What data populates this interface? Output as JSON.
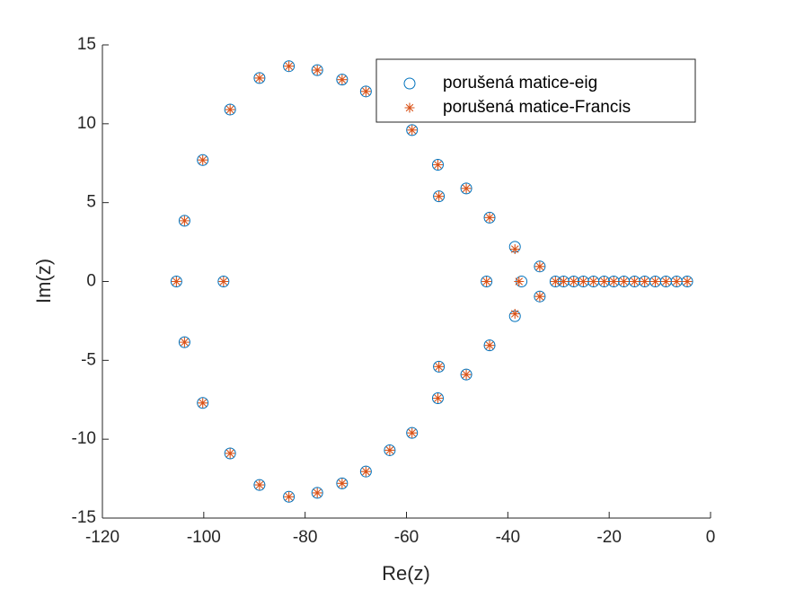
{
  "chart_data": {
    "type": "scatter",
    "xlabel": "Re(z)",
    "ylabel": "Im(z)",
    "xlim": [
      -120,
      0
    ],
    "ylim": [
      -15,
      15
    ],
    "xticks": [
      -120,
      -100,
      -80,
      -60,
      -40,
      -20,
      0
    ],
    "yticks": [
      -15,
      -10,
      -5,
      0,
      5,
      10,
      15
    ],
    "xtick_labels": [
      "-120",
      "-100",
      "-80",
      "-60",
      "-40",
      "-20",
      "0"
    ],
    "ytick_labels": [
      "-15",
      "-10",
      "-5",
      "0",
      "5",
      "10",
      "15"
    ],
    "grid": false,
    "legend_position": "top-right",
    "series": [
      {
        "name": "porušená matice-eig",
        "marker": "circle",
        "color": "#0072BD",
        "points": [
          [
            -105.4,
            0
          ],
          [
            -96.1,
            0
          ],
          [
            -103.8,
            3.85
          ],
          [
            -103.8,
            -3.85
          ],
          [
            -100.2,
            7.7
          ],
          [
            -100.2,
            -7.7
          ],
          [
            -94.8,
            10.9
          ],
          [
            -94.8,
            -10.9
          ],
          [
            -89.0,
            12.9
          ],
          [
            -89.0,
            -12.9
          ],
          [
            -83.2,
            13.65
          ],
          [
            -83.2,
            -13.65
          ],
          [
            -77.6,
            13.4
          ],
          [
            -77.6,
            -13.4
          ],
          [
            -72.7,
            12.8
          ],
          [
            -72.7,
            -12.8
          ],
          [
            -68.0,
            12.05
          ],
          [
            -68.0,
            -12.05
          ],
          [
            -63.3,
            10.7
          ],
          [
            -63.3,
            -10.7
          ],
          [
            -58.9,
            9.6
          ],
          [
            -58.9,
            -9.6
          ],
          [
            -53.8,
            7.4
          ],
          [
            -53.8,
            -7.4
          ],
          [
            -53.6,
            5.4
          ],
          [
            -53.6,
            -5.4
          ],
          [
            -48.2,
            5.9
          ],
          [
            -48.2,
            -5.9
          ],
          [
            -43.6,
            4.05
          ],
          [
            -43.6,
            -4.05
          ],
          [
            -44.2,
            0
          ],
          [
            -37.3,
            0
          ],
          [
            -38.6,
            2.2
          ],
          [
            -38.6,
            -2.2
          ],
          [
            -33.7,
            0.95
          ],
          [
            -33.7,
            -0.95
          ],
          [
            -30.6,
            0
          ],
          [
            -29.0,
            0
          ],
          [
            -27.0,
            0
          ],
          [
            -25.1,
            0
          ],
          [
            -23.1,
            0
          ],
          [
            -21.0,
            0
          ],
          [
            -19.1,
            0
          ],
          [
            -17.1,
            0
          ],
          [
            -15.0,
            0
          ],
          [
            -13.0,
            0
          ],
          [
            -10.9,
            0
          ],
          [
            -8.8,
            0
          ],
          [
            -6.7,
            0
          ],
          [
            -4.6,
            0
          ]
        ]
      },
      {
        "name": "porušená matice-Francis",
        "marker": "asterisk",
        "color": "#D95319",
        "points": [
          [
            -105.4,
            0
          ],
          [
            -96.1,
            0
          ],
          [
            -103.8,
            3.85
          ],
          [
            -103.8,
            -3.85
          ],
          [
            -100.2,
            7.7
          ],
          [
            -100.2,
            -7.7
          ],
          [
            -94.8,
            10.9
          ],
          [
            -94.8,
            -10.9
          ],
          [
            -89.0,
            12.9
          ],
          [
            -89.0,
            -12.9
          ],
          [
            -83.2,
            13.65
          ],
          [
            -83.2,
            -13.65
          ],
          [
            -77.6,
            13.4
          ],
          [
            -77.6,
            -13.4
          ],
          [
            -72.7,
            12.8
          ],
          [
            -72.7,
            -12.8
          ],
          [
            -68.0,
            12.05
          ],
          [
            -68.0,
            -12.05
          ],
          [
            -63.3,
            10.7
          ],
          [
            -63.3,
            -10.7
          ],
          [
            -58.9,
            9.6
          ],
          [
            -58.9,
            -9.6
          ],
          [
            -53.8,
            7.4
          ],
          [
            -53.8,
            -7.4
          ],
          [
            -53.6,
            5.4
          ],
          [
            -53.6,
            -5.4
          ],
          [
            -48.2,
            5.9
          ],
          [
            -48.2,
            -5.9
          ],
          [
            -43.6,
            4.05
          ],
          [
            -43.6,
            -4.05
          ],
          [
            -44.2,
            0
          ],
          [
            -37.8,
            0
          ],
          [
            -38.6,
            2.05
          ],
          [
            -38.6,
            -2.05
          ],
          [
            -33.7,
            0.95
          ],
          [
            -33.7,
            -0.95
          ],
          [
            -30.6,
            0
          ],
          [
            -29.0,
            0
          ],
          [
            -27.0,
            0
          ],
          [
            -25.1,
            0
          ],
          [
            -23.1,
            0
          ],
          [
            -21.0,
            0
          ],
          [
            -19.1,
            0
          ],
          [
            -17.1,
            0
          ],
          [
            -15.0,
            0
          ],
          [
            -13.0,
            0
          ],
          [
            -10.9,
            0
          ],
          [
            -8.8,
            0
          ],
          [
            -6.7,
            0
          ],
          [
            -4.6,
            0
          ]
        ]
      }
    ]
  }
}
